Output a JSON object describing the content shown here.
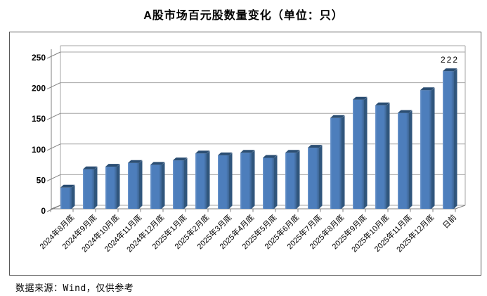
{
  "title": "A股市场百元股数量变化（单位：只）",
  "footer": "数据来源：Wind，仅供参考",
  "chart_data": {
    "type": "bar",
    "style": "3d-column",
    "title": "A股市场百元股数量变化（单位：只）",
    "categories": [
      "2024年8月底",
      "2024年9月底",
      "2024年10月底",
      "2024年11月底",
      "2024年12月底",
      "2025年1月底",
      "2025年2月底",
      "2025年3月底",
      "2025年4月底",
      "2025年5月底",
      "2025年6月底",
      "2025年7月底",
      "2025年8月底",
      "2025年9月底",
      "2025年10月底",
      "2025年11月底",
      "2025年12月底",
      "日前"
    ],
    "values": [
      38,
      67,
      71,
      77,
      74,
      81,
      92,
      89,
      93,
      85,
      93,
      101,
      148,
      177,
      168,
      156,
      192,
      222
    ],
    "xlabel": "",
    "ylabel": "",
    "ylim": [
      0,
      250
    ],
    "yticks": [
      0,
      50,
      100,
      150,
      200,
      250
    ],
    "grid": true,
    "legend": "none",
    "data_labels": [
      {
        "index": 17,
        "text": "222"
      }
    ],
    "source_note": "数据来源：Wind，仅供参考"
  },
  "colors": {
    "bar_front": "#4D7EBC",
    "bar_front_light": "#6F98CD",
    "bar_front_dark": "#3D6593",
    "bar_side": "#30567D",
    "bar_top": "#2A4D72",
    "gridline": "#A6A6A6",
    "axis": "#808080",
    "frame_border": "#595959",
    "text": "#000000"
  }
}
